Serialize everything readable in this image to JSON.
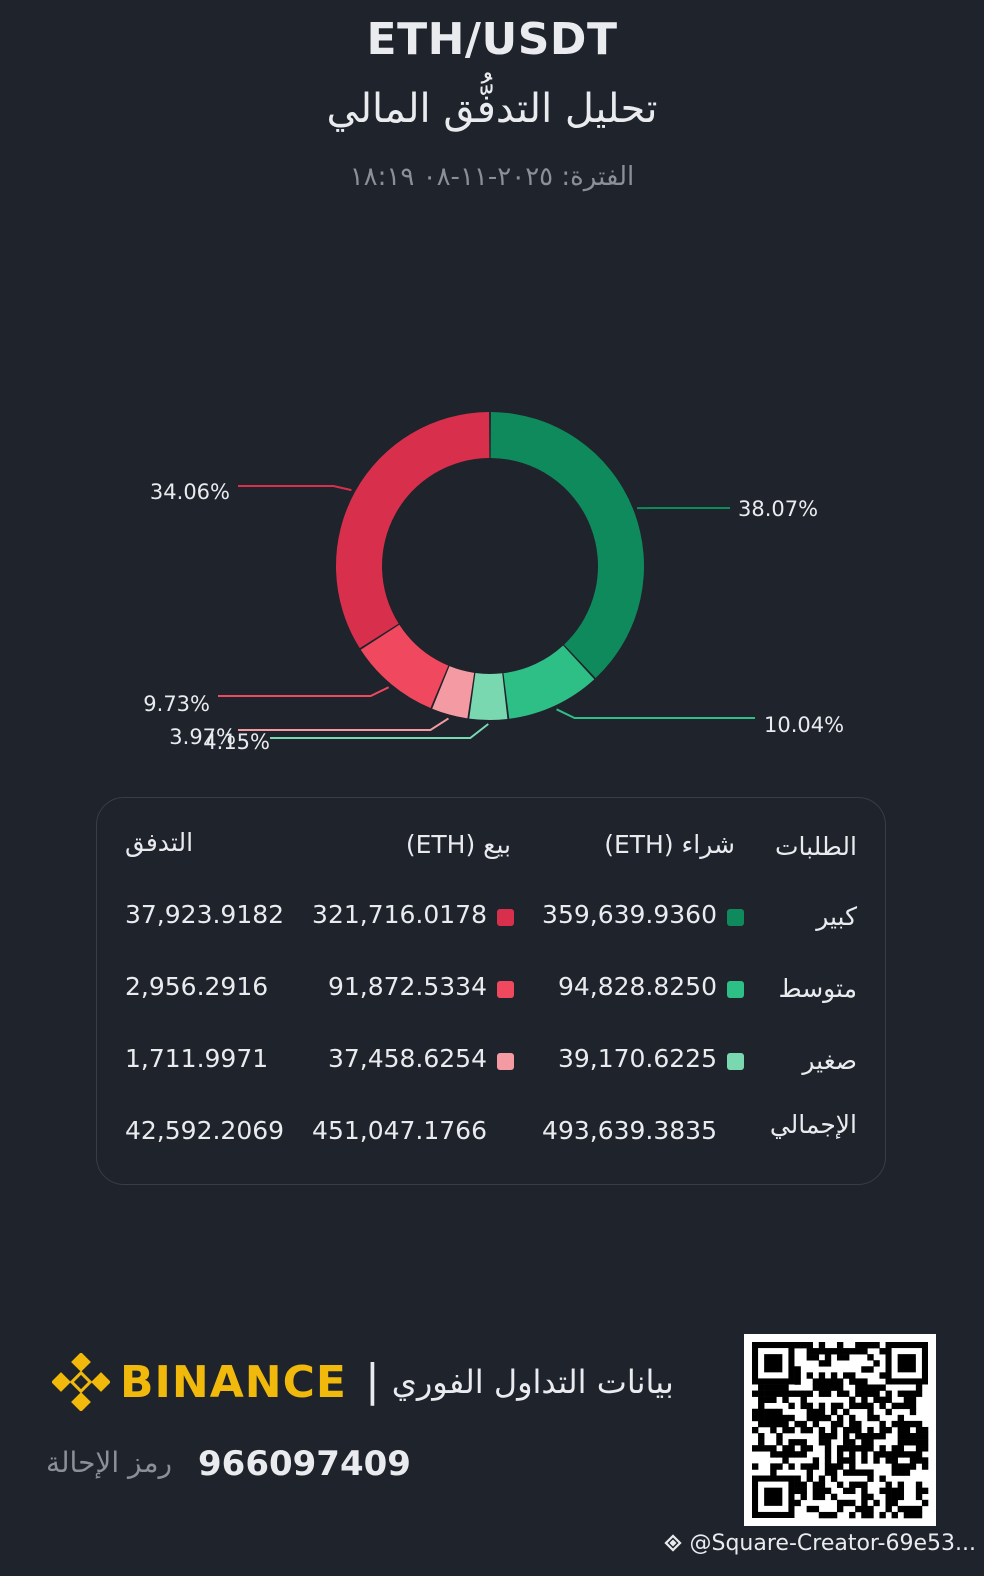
{
  "header": {
    "pair": "ETH/USDT",
    "subtitle": "تحليل التدفُّق المالي",
    "period": "الفترة: ٢٠٢٥-١١-٠٨ ١٨:١٩"
  },
  "colors": {
    "buy_large": "#0f8a5c",
    "buy_medium": "#2ebf87",
    "buy_small": "#7ad8b0",
    "sell_large": "#d8304c",
    "sell_medium": "#f0485e",
    "sell_small": "#f39aa2"
  },
  "chart_data": {
    "type": "pie",
    "style": "donut",
    "slices": [
      {
        "label": "38.07%",
        "value": 38.07,
        "group": "buy",
        "size": "large",
        "color": "#0f8a5c"
      },
      {
        "label": "10.04%",
        "value": 10.04,
        "group": "buy",
        "size": "medium",
        "color": "#2ebf87"
      },
      {
        "label": "4.15%",
        "value": 4.15,
        "group": "buy",
        "size": "small",
        "color": "#7ad8b0"
      },
      {
        "label": "3.97%",
        "value": 3.97,
        "group": "sell",
        "size": "small",
        "color": "#f39aa2"
      },
      {
        "label": "9.73%",
        "value": 9.73,
        "group": "sell",
        "size": "medium",
        "color": "#f0485e"
      },
      {
        "label": "34.06%",
        "value": 34.06,
        "group": "sell",
        "size": "large",
        "color": "#d8304c"
      }
    ]
  },
  "table": {
    "headers": {
      "orders": "الطلبات",
      "buy": "شراء (ETH)",
      "sell": "بيع (ETH)",
      "flow": "التدفق"
    },
    "rows": [
      {
        "label": "كبير",
        "buy": "359,639.9360",
        "sell": "321,716.0178",
        "flow": "37,923.9182"
      },
      {
        "label": "متوسط",
        "buy": "94,828.8250",
        "sell": "91,872.5334",
        "flow": "2,956.2916"
      },
      {
        "label": "صغير",
        "buy": "39,170.6225",
        "sell": "37,458.6254",
        "flow": "1,711.9971"
      },
      {
        "label": "الإجمالي",
        "buy": "493,639.3835",
        "sell": "451,047.1766",
        "flow": "42,592.2069"
      }
    ]
  },
  "footer": {
    "brand": "BINANCE",
    "separator": "|",
    "tagline": "بيانات التداول الفوري",
    "referral_label": "رمز الإحالة",
    "referral_code": "966097409",
    "watermark": "@Square-Creator-69e53...",
    "logo_icon": "binance-logo-icon",
    "qr_icon": "qr-code-icon"
  }
}
